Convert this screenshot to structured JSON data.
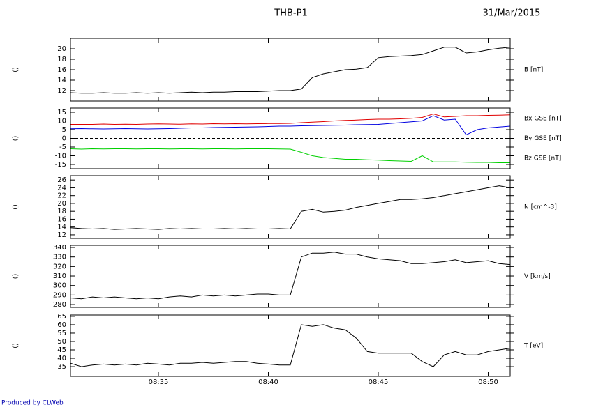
{
  "title": "THB-P1",
  "date": "31/Mar/2015",
  "footer": "Produced by CLWeb",
  "xlim": [
    "08:31:00",
    "08:51:00"
  ],
  "xticks": [
    "08:35",
    "08:40",
    "08:45",
    "08:50"
  ],
  "x": [
    "08:31:00",
    "08:31:30",
    "08:32:00",
    "08:32:30",
    "08:33:00",
    "08:33:30",
    "08:34:00",
    "08:34:30",
    "08:35:00",
    "08:35:30",
    "08:36:00",
    "08:36:30",
    "08:37:00",
    "08:37:30",
    "08:38:00",
    "08:38:30",
    "08:39:00",
    "08:39:30",
    "08:40:00",
    "08:40:30",
    "08:41:00",
    "08:41:30",
    "08:42:00",
    "08:42:30",
    "08:43:00",
    "08:43:30",
    "08:44:00",
    "08:44:30",
    "08:45:00",
    "08:45:30",
    "08:46:00",
    "08:46:30",
    "08:47:00",
    "08:47:30",
    "08:48:00",
    "08:48:30",
    "08:49:00",
    "08:49:30",
    "08:50:00",
    "08:50:30",
    "08:51:00"
  ],
  "chart_data": [
    {
      "type": "line",
      "ylabel": "()",
      "ylim": [
        10,
        22
      ],
      "yticks": [
        12,
        14,
        16,
        18,
        20
      ],
      "series": [
        {
          "name": "B [nT]",
          "color": "#000000",
          "values": [
            11.6,
            11.5,
            11.5,
            11.6,
            11.5,
            11.5,
            11.6,
            11.5,
            11.6,
            11.5,
            11.6,
            11.7,
            11.6,
            11.7,
            11.7,
            11.8,
            11.8,
            11.8,
            11.9,
            12.0,
            12.0,
            12.3,
            14.5,
            15.2,
            15.6,
            16.0,
            16.1,
            16.4,
            18.3,
            18.5,
            18.6,
            18.7,
            18.9,
            19.6,
            20.3,
            20.3,
            19.2,
            19.4,
            19.8,
            20.1,
            20.3
          ]
        }
      ]
    },
    {
      "type": "line",
      "ylabel": "()",
      "ylim": [
        -17.4,
        17.4
      ],
      "yticks": [
        -15,
        -10,
        -5,
        0,
        5,
        10,
        15
      ],
      "zero_line": true,
      "series": [
        {
          "name": "Bx GSE [nT]",
          "color": "#e00000",
          "values": [
            8,
            8,
            8,
            8.2,
            8,
            8.1,
            8,
            8.2,
            8.3,
            8.2,
            8.1,
            8.3,
            8.2,
            8.4,
            8.3,
            8.4,
            8.3,
            8.4,
            8.5,
            8.5,
            8.6,
            9,
            9.3,
            9.6,
            10,
            10.3,
            10.5,
            10.8,
            11,
            11,
            11.2,
            11.5,
            12,
            14,
            12.3,
            12.6,
            13,
            13,
            13.2,
            13.3,
            13.5
          ]
        },
        {
          "name": "By GSE [nT]",
          "color": "#00d000",
          "values": [
            -6,
            -6.2,
            -6,
            -6.1,
            -6,
            -6,
            -6.1,
            -6,
            -6,
            -6.1,
            -6,
            -6,
            -6.1,
            -6,
            -6,
            -6.1,
            -6,
            -6,
            -6,
            -6.1,
            -6.2,
            -8,
            -10,
            -11,
            -11.5,
            -12,
            -12,
            -12.3,
            -12.5,
            -12.8,
            -13,
            -13.2,
            -10,
            -13.5,
            -13.5,
            -13.5,
            -13.7,
            -13.8,
            -13.8,
            -14,
            -14
          ]
        },
        {
          "name": "Bz GSE [nT]",
          "color": "#0000e0",
          "values": [
            5.5,
            5.6,
            5.5,
            5.4,
            5.5,
            5.6,
            5.5,
            5.4,
            5.5,
            5.6,
            5.8,
            6,
            6,
            6.2,
            6.3,
            6.4,
            6.5,
            6.6,
            6.8,
            7,
            7,
            7.2,
            7.3,
            7.4,
            7.5,
            7.6,
            7.8,
            7.9,
            8,
            8.5,
            9,
            9.5,
            10,
            13,
            10.5,
            11,
            2,
            5,
            6,
            6.5,
            7
          ]
        }
      ]
    },
    {
      "type": "line",
      "ylabel": "()",
      "ylim": [
        11.1,
        27.1
      ],
      "yticks": [
        12,
        14,
        16,
        18,
        20,
        22,
        24,
        26
      ],
      "series": [
        {
          "name": "N [cm^-3]",
          "color": "#000000",
          "values": [
            13.8,
            13.6,
            13.5,
            13.6,
            13.4,
            13.5,
            13.6,
            13.5,
            13.4,
            13.6,
            13.5,
            13.6,
            13.5,
            13.5,
            13.6,
            13.5,
            13.6,
            13.5,
            13.5,
            13.6,
            13.5,
            18,
            18.5,
            17.8,
            18,
            18.3,
            19,
            19.5,
            20,
            20.5,
            21,
            21,
            21.2,
            21.5,
            22,
            22.5,
            23,
            23.5,
            24,
            24.5,
            24
          ]
        }
      ]
    },
    {
      "type": "line",
      "ylabel": "()",
      "ylim": [
        277.1,
        342.2
      ],
      "yticks": [
        280,
        290,
        300,
        310,
        320,
        330,
        340
      ],
      "series": [
        {
          "name": "V [km/s]",
          "color": "#000000",
          "values": [
            287,
            286,
            288,
            287,
            288,
            287,
            286,
            287,
            286,
            288,
            289,
            288,
            290,
            289,
            290,
            289,
            290,
            291,
            291,
            290,
            290,
            330,
            334,
            334,
            335,
            333,
            333,
            330,
            328,
            327,
            326,
            323,
            323,
            324,
            325,
            327,
            324,
            325,
            326,
            323,
            322
          ]
        }
      ]
    },
    {
      "type": "line",
      "ylabel": "()",
      "ylim": [
        29.2,
        65.8
      ],
      "yticks": [
        35,
        40,
        45,
        50,
        55,
        60,
        65
      ],
      "series": [
        {
          "name": "T [eV]",
          "color": "#000000",
          "values": [
            37,
            35,
            36,
            36.5,
            36,
            36.5,
            36,
            37,
            36.5,
            36,
            37,
            37,
            37.5,
            37,
            37.5,
            38,
            38,
            37,
            36.5,
            36,
            36,
            60,
            59,
            60,
            58,
            57,
            52,
            44,
            43,
            43,
            43,
            43,
            38,
            35,
            42,
            44,
            42,
            42,
            44,
            45,
            46
          ]
        }
      ]
    }
  ]
}
